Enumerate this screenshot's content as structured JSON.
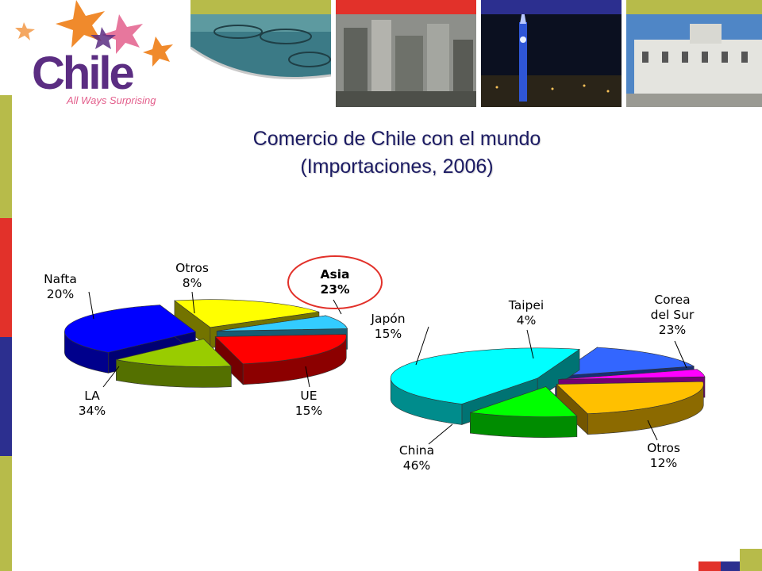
{
  "brand": {
    "name": "Chile",
    "tagline": "All Ways Surprising",
    "colors": {
      "purple": "#5b2d82",
      "orange": "#f08a2c",
      "navy": "#1c1b63"
    }
  },
  "title": {
    "line1": "Comercio de Chile con el mundo",
    "line2": "(Importaciones, 2006)"
  },
  "chart_data": [
    {
      "type": "pie",
      "title": "",
      "slices": [
        {
          "label": "Asia",
          "value": 23,
          "value_label": "23%",
          "color": "#ff0000",
          "highlighted": true
        },
        {
          "label": "UE",
          "value": 15,
          "value_label": "15%",
          "color": "#99cc00"
        },
        {
          "label": "LA",
          "value": 34,
          "value_label": "34%",
          "color": "#0000ff"
        },
        {
          "label": "Nafta",
          "value": 20,
          "value_label": "20%",
          "color": "#ffff00"
        },
        {
          "label": "Otros",
          "value": 8,
          "value_label": "8%",
          "color": "#33ccff"
        }
      ]
    },
    {
      "type": "pie",
      "title": "",
      "slices": [
        {
          "label": "Corea del Sur",
          "label_lines": [
            "Corea",
            "del Sur"
          ],
          "value": 23,
          "value_label": "23%",
          "color": "#ffc000"
        },
        {
          "label": "Otros",
          "value": 12,
          "value_label": "12%",
          "color": "#00ff00"
        },
        {
          "label": "China",
          "value": 46,
          "value_label": "46%",
          "color": "#00ffff"
        },
        {
          "label": "Japón",
          "value": 15,
          "value_label": "15%",
          "color": "#3366ff"
        },
        {
          "label": "Taipei",
          "value": 4,
          "value_label": "4%",
          "color": "#ff00ff"
        }
      ]
    }
  ]
}
